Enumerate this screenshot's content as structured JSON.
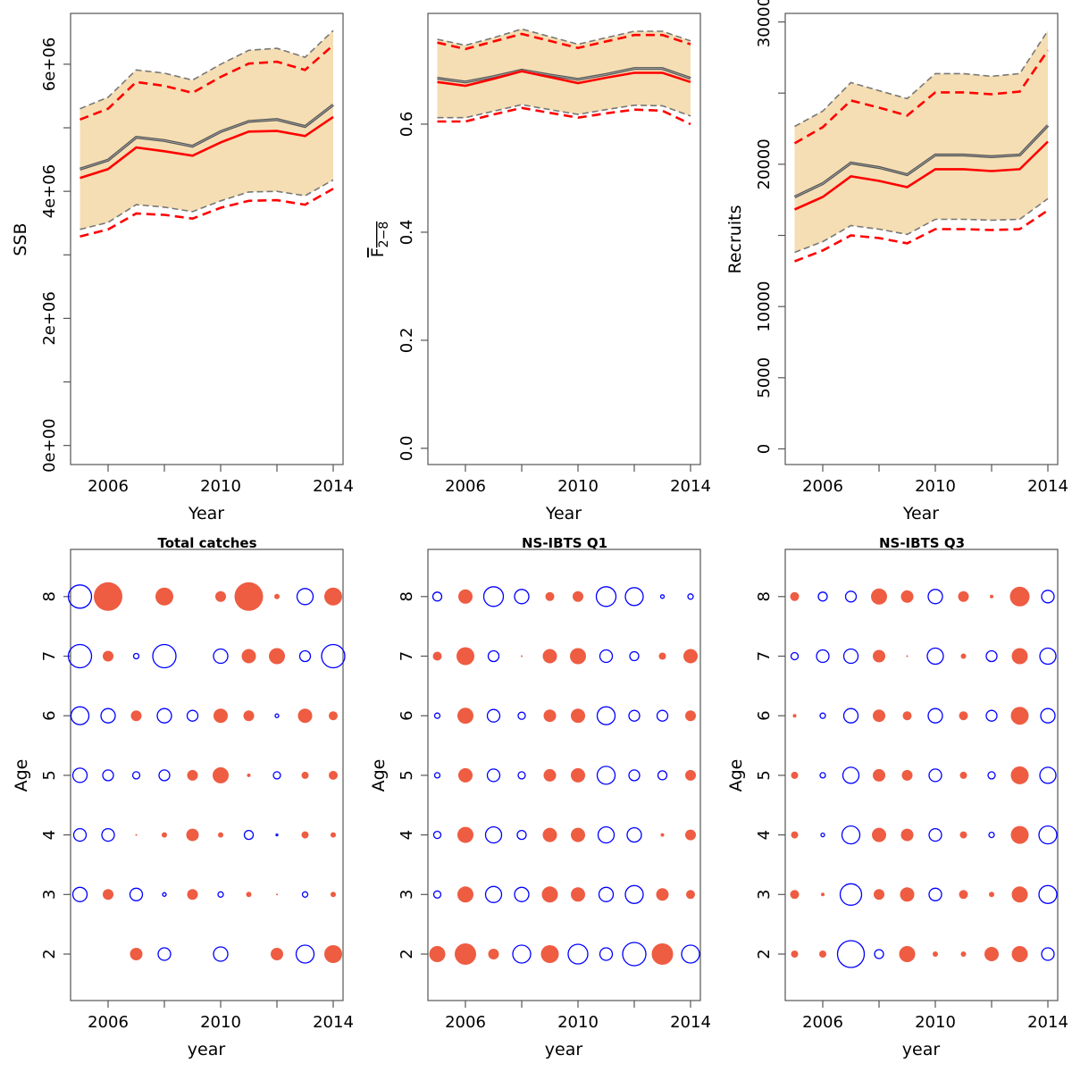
{
  "colors": {
    "band": "#F5DEB3",
    "red": "#FF0000",
    "grey": "#777777",
    "median": "#555555",
    "bubble_pos": "#EE5C42",
    "bubble_neg": "#0000FF"
  },
  "chart_data": [
    {
      "type": "line",
      "id": "ssb",
      "xlabel": "Year",
      "ylabel": "SSB",
      "ylim": [
        -300000,
        6800000
      ],
      "yticks": [
        0,
        1000000,
        2000000,
        3000000,
        4000000,
        5000000,
        6000000
      ],
      "ytick_labels": [
        "0e+00",
        "",
        "2e+06",
        "",
        "4e+06",
        "",
        "6e+06"
      ],
      "xticks": [
        2006,
        2008,
        2010,
        2012,
        2014
      ],
      "xtick_labels": [
        "2006",
        "",
        "2010",
        "",
        "2014"
      ],
      "x": [
        2005,
        2006,
        2007,
        2008,
        2009,
        2010,
        2011,
        2012,
        2013,
        2014
      ],
      "median": [
        4350000,
        4490000,
        4850000,
        4800000,
        4710000,
        4940000,
        5100000,
        5130000,
        5020000,
        5360000
      ],
      "upper": [
        5300000,
        5480000,
        5910000,
        5860000,
        5750000,
        6000000,
        6220000,
        6250000,
        6110000,
        6530000
      ],
      "lower": [
        3400000,
        3510000,
        3790000,
        3750000,
        3680000,
        3850000,
        3990000,
        4000000,
        3930000,
        4180000
      ],
      "est": [
        4210000,
        4350000,
        4690000,
        4630000,
        4560000,
        4770000,
        4940000,
        4950000,
        4870000,
        5170000
      ],
      "est_upper": [
        5130000,
        5300000,
        5720000,
        5660000,
        5550000,
        5800000,
        6010000,
        6040000,
        5910000,
        6300000
      ],
      "est_lower": [
        3290000,
        3400000,
        3650000,
        3630000,
        3570000,
        3740000,
        3850000,
        3860000,
        3790000,
        4040000
      ]
    },
    {
      "type": "line",
      "id": "fbar",
      "xlabel": "Year",
      "ylabel": "F",
      "ylabel_sub": "2−8",
      "ylim": [
        -0.03,
        0.805
      ],
      "yticks": [
        0,
        0.2,
        0.4,
        0.6
      ],
      "ytick_labels": [
        "0.0",
        "0.2",
        "0.4",
        "0.6"
      ],
      "xticks": [
        2006,
        2008,
        2010,
        2012,
        2014
      ],
      "xtick_labels": [
        "2006",
        "",
        "2010",
        "",
        "2014"
      ],
      "x": [
        2005,
        2006,
        2007,
        2008,
        2009,
        2010,
        2011,
        2012,
        2013,
        2014
      ],
      "median": [
        0.685,
        0.678,
        0.688,
        0.7,
        0.691,
        0.683,
        0.692,
        0.703,
        0.703,
        0.685
      ],
      "upper": [
        0.757,
        0.746,
        0.76,
        0.776,
        0.762,
        0.748,
        0.76,
        0.772,
        0.772,
        0.754
      ],
      "lower": [
        0.612,
        0.612,
        0.624,
        0.636,
        0.627,
        0.618,
        0.627,
        0.635,
        0.634,
        0.615
      ],
      "est": [
        0.678,
        0.671,
        0.684,
        0.698,
        0.687,
        0.676,
        0.686,
        0.695,
        0.695,
        0.678
      ],
      "est_upper": [
        0.751,
        0.739,
        0.753,
        0.767,
        0.754,
        0.741,
        0.753,
        0.765,
        0.765,
        0.748
      ],
      "est_lower": [
        0.605,
        0.605,
        0.618,
        0.63,
        0.621,
        0.612,
        0.62,
        0.627,
        0.625,
        0.6
      ]
    },
    {
      "type": "line",
      "id": "recruits",
      "xlabel": "Year",
      "ylabel": "Recruits",
      "ylim": [
        -1100,
        30600
      ],
      "yticks": [
        0,
        5000,
        10000,
        15000,
        20000,
        25000,
        30000
      ],
      "ytick_labels": [
        "0",
        "5000",
        "10000",
        "",
        "20000",
        "",
        "30000"
      ],
      "xticks": [
        2006,
        2008,
        2010,
        2012,
        2014
      ],
      "xtick_labels": [
        "2006",
        "",
        "2010",
        "",
        "2014"
      ],
      "x": [
        2005,
        2006,
        2007,
        2008,
        2009,
        2010,
        2011,
        2012,
        2013,
        2014
      ],
      "median": [
        17700,
        18640,
        20090,
        19770,
        19270,
        20650,
        20650,
        20530,
        20650,
        22720
      ],
      "upper": [
        22660,
        23730,
        25740,
        25170,
        24610,
        26370,
        26370,
        26180,
        26370,
        29380
      ],
      "lower": [
        13810,
        14560,
        15690,
        15440,
        15070,
        16130,
        16130,
        16070,
        16130,
        17580
      ],
      "est": [
        16820,
        17700,
        19150,
        18830,
        18390,
        19650,
        19650,
        19520,
        19650,
        21590
      ],
      "est_upper": [
        21470,
        22600,
        24480,
        23980,
        23420,
        25050,
        25050,
        24920,
        25110,
        28000
      ],
      "est_lower": [
        13180,
        13940,
        15000,
        14810,
        14440,
        15440,
        15440,
        15380,
        15440,
        16760
      ]
    },
    {
      "type": "scatter",
      "id": "total-catches",
      "title": "Total catches",
      "xlabel": "year",
      "ylabel": "Age",
      "xticks": [
        2006,
        2008,
        2010,
        2012,
        2014
      ],
      "xtick_labels": [
        "2006",
        "",
        "2010",
        "",
        "2014"
      ],
      "yticks": [
        2,
        3,
        4,
        5,
        6,
        7,
        8
      ],
      "years": [
        2005,
        2006,
        2007,
        2008,
        2009,
        2010,
        2011,
        2012,
        2013,
        2014
      ],
      "residuals": {
        "8": [
          -2.6,
          3.2,
          0,
          2.0,
          0,
          1.2,
          3.2,
          0.6,
          -1.8,
          2.0
        ],
        "7": [
          -2.6,
          1.2,
          -0.6,
          -2.6,
          0,
          -1.6,
          1.6,
          1.8,
          -1.2,
          -2.6
        ],
        "6": [
          -2.0,
          -1.6,
          1.2,
          -1.6,
          -1.2,
          1.6,
          1.2,
          -0.4,
          1.6,
          1.0
        ],
        "5": [
          -1.6,
          -1.2,
          -0.8,
          -1.2,
          1.2,
          1.8,
          0.4,
          -0.8,
          0.8,
          1.0
        ],
        "4": [
          -1.4,
          -1.4,
          0.2,
          0.6,
          1.4,
          0.6,
          -1.0,
          -0.2,
          0.8,
          0.6
        ],
        "3": [
          -1.6,
          1.2,
          -1.4,
          -0.4,
          1.2,
          -0.6,
          0.6,
          0.2,
          -0.6,
          0.6
        ],
        "2": [
          null,
          null,
          1.4,
          -1.4,
          null,
          -1.6,
          null,
          1.4,
          -2.0,
          2.0
        ]
      }
    },
    {
      "type": "scatter",
      "id": "ns-ibts-q1",
      "title": "NS-IBTS Q1",
      "xlabel": "year",
      "ylabel": "Age",
      "xticks": [
        2006,
        2008,
        2010,
        2012,
        2014
      ],
      "xtick_labels": [
        "2006",
        "",
        "2010",
        "",
        "2014"
      ],
      "yticks": [
        2,
        3,
        4,
        5,
        6,
        7,
        8
      ],
      "years": [
        2005,
        2006,
        2007,
        2008,
        2009,
        2010,
        2011,
        2012,
        2013,
        2014
      ],
      "residuals": {
        "8": [
          -1.0,
          1.6,
          -2.2,
          -1.6,
          1.0,
          1.2,
          -2.2,
          -2.0,
          -0.4,
          -0.6
        ],
        "7": [
          1.0,
          2.0,
          -1.2,
          0.2,
          1.6,
          1.8,
          -1.4,
          -1.0,
          0.8,
          1.6
        ],
        "6": [
          -0.6,
          1.8,
          -1.4,
          -0.8,
          1.4,
          1.6,
          -2.0,
          -1.2,
          -1.2,
          1.2
        ],
        "5": [
          -0.6,
          1.6,
          -1.4,
          -0.8,
          1.4,
          1.6,
          -2.0,
          -1.2,
          -1.0,
          1.2
        ],
        "4": [
          -0.8,
          1.8,
          -1.8,
          -1.0,
          1.6,
          1.6,
          -1.8,
          -1.6,
          0.4,
          1.2
        ],
        "3": [
          -0.8,
          1.8,
          -1.8,
          -1.6,
          1.8,
          1.6,
          -1.6,
          -2.0,
          1.4,
          1.0
        ],
        "2": [
          1.8,
          2.4,
          1.2,
          -2.0,
          2.0,
          -2.2,
          -1.4,
          -2.6,
          2.4,
          -2.0
        ]
      }
    },
    {
      "type": "scatter",
      "id": "ns-ibts-q3",
      "title": "NS-IBTS Q3",
      "xlabel": "year",
      "ylabel": "Age",
      "xticks": [
        2006,
        2008,
        2010,
        2012,
        2014
      ],
      "xtick_labels": [
        "2006",
        "",
        "2010",
        "",
        "2014"
      ],
      "yticks": [
        2,
        3,
        4,
        5,
        6,
        7,
        8
      ],
      "years": [
        2005,
        2006,
        2007,
        2008,
        2009,
        2010,
        2011,
        2012,
        2013,
        2014
      ],
      "residuals": {
        "8": [
          1.0,
          -1.0,
          -1.2,
          1.8,
          1.4,
          -1.6,
          1.2,
          0.4,
          2.2,
          -1.4
        ],
        "7": [
          -0.8,
          -1.4,
          -1.6,
          1.4,
          0.2,
          -1.8,
          0.6,
          -1.2,
          1.8,
          -1.8
        ],
        "6": [
          0.4,
          -0.6,
          -1.6,
          1.4,
          1.0,
          -1.6,
          1.0,
          -1.2,
          2.0,
          -1.6
        ],
        "5": [
          0.8,
          -0.6,
          -1.8,
          1.4,
          1.2,
          -1.4,
          0.8,
          -0.8,
          2.0,
          -1.8
        ],
        "4": [
          0.8,
          -0.4,
          -2.0,
          1.6,
          1.4,
          -1.4,
          0.8,
          -0.6,
          2.0,
          -2.0
        ],
        "3": [
          1.0,
          0.4,
          -2.4,
          1.2,
          1.6,
          -1.4,
          1.0,
          0.6,
          1.8,
          -2.0
        ],
        "2": [
          0.8,
          0.8,
          -3.0,
          -1.0,
          1.8,
          0.6,
          0.6,
          1.6,
          1.8,
          -1.4
        ]
      }
    }
  ]
}
